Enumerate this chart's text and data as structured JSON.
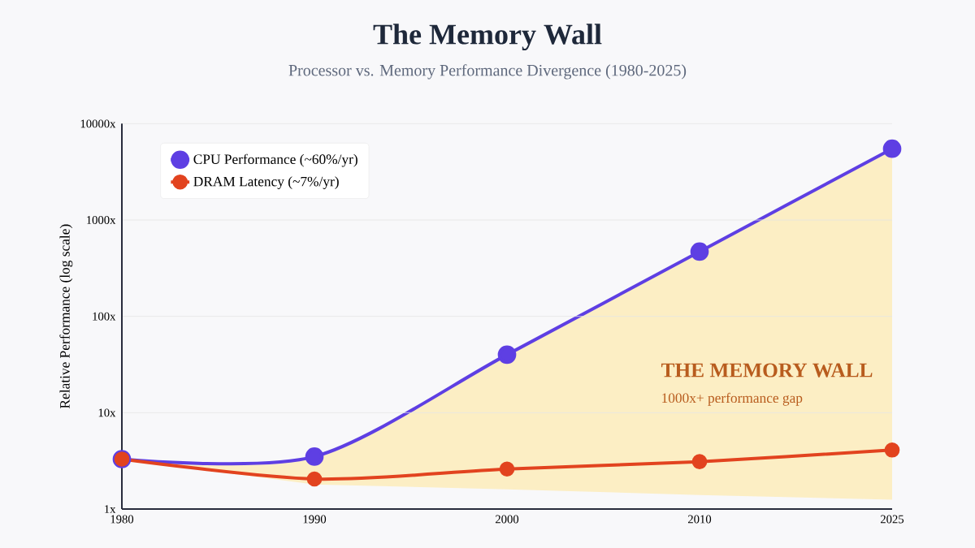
{
  "chart_data": {
    "type": "line",
    "title": "The Memory Wall",
    "subtitle": "Processor vs. Memory Performance Divergence (1980-2025)",
    "ylabel": "Relative Performance (log scale)",
    "categories": [
      "1980",
      "1990",
      "2000",
      "2010",
      "2025"
    ],
    "series": [
      {
        "name": "CPU Performance (~60%/yr)",
        "color": "#5e3fe3",
        "values": [
          3.3,
          3.5,
          40,
          470,
          5500
        ],
        "lower": [
          3.3,
          1.8,
          1.6,
          1.4,
          1.25
        ],
        "upper": [
          3.3,
          3.5,
          40,
          470,
          5500
        ]
      },
      {
        "name": "DRAM Latency (~7%/yr)",
        "color": "#e2431f",
        "values": [
          3.3,
          2.05,
          2.6,
          3.1,
          4.1
        ]
      }
    ],
    "log": "y",
    "ylim": [
      1,
      10000
    ],
    "yticks": [
      {
        "value": 1,
        "label": "1x"
      },
      {
        "value": 10,
        "label": "10x"
      },
      {
        "value": 100,
        "label": "100x"
      },
      {
        "value": 1000,
        "label": "1000x"
      },
      {
        "value": 10000,
        "label": "10000x"
      }
    ],
    "grid": "y",
    "legend": "top left",
    "marker": "circle",
    "line_style": "solid",
    "annotations": [
      "THE MEMORY WALL",
      "1000x+ performance gap"
    ]
  }
}
